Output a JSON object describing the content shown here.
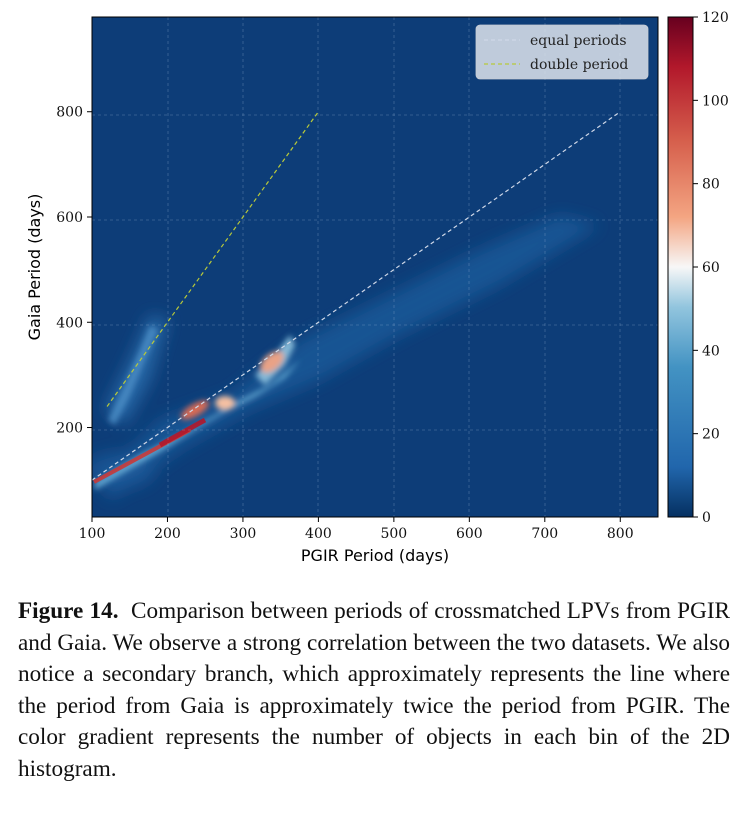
{
  "chart_data": {
    "type": "heatmap",
    "xlabel": "PGIR Period (days)",
    "ylabel": "Gaia Period (days)",
    "xlim": [
      100,
      850
    ],
    "ylim": [
      30,
      980
    ],
    "x_ticks": [
      100,
      200,
      300,
      400,
      500,
      600,
      700,
      800
    ],
    "y_ticks": [
      200,
      400,
      600,
      800
    ],
    "colorbar": {
      "min": 0,
      "max": 120,
      "ticks": [
        0,
        20,
        40,
        60,
        80,
        100,
        120
      ],
      "colormap": "RdBu_r"
    },
    "legend_position": "top-right",
    "series": [
      {
        "name": "equal periods",
        "type": "line",
        "color": "#cfd8e8",
        "dash": true,
        "points": [
          [
            100,
            100
          ],
          [
            800,
            800
          ]
        ]
      },
      {
        "name": "double period",
        "type": "line",
        "color": "#b8c93a",
        "dash": true,
        "points": [
          [
            120,
            240
          ],
          [
            400,
            800
          ]
        ]
      }
    ],
    "density_features": [
      {
        "feature": "main branch",
        "from": [
          100,
          100
        ],
        "to": [
          360,
          360
        ],
        "peak_count": 120
      },
      {
        "feature": "hotspot",
        "x": 230,
        "y": 230,
        "count": 110
      },
      {
        "feature": "hotspot",
        "x": 335,
        "y": 330,
        "count": 90
      },
      {
        "feature": "secondary branch",
        "from": [
          120,
          250
        ],
        "to": [
          160,
          420
        ],
        "peak_count": 35
      },
      {
        "feature": "diffuse tail",
        "from": [
          360,
          380
        ],
        "to": [
          700,
          650
        ],
        "peak_count": 15
      }
    ]
  },
  "caption": {
    "label": "Figure 14.",
    "text": "Comparison between periods of crossmatched LPVs from PGIR and Gaia. We observe a strong correlation between the two datasets. We also notice a secondary branch, which approximately represents the line where the period from Gaia is approximately twice the period from PGIR. The color gradient represents the number of objects in each bin of the 2D histogram."
  }
}
